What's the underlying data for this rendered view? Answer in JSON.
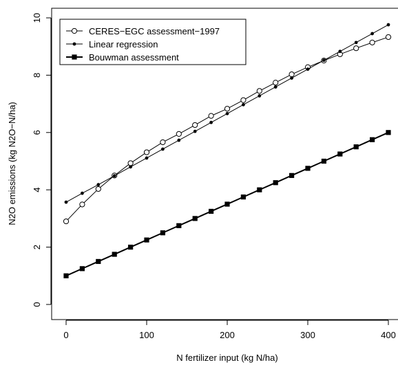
{
  "chart_data": {
    "type": "line",
    "xlabel": "N fertilizer input (kg N/ha)",
    "ylabel": "N2O emissions (kg N2O−N/ha)",
    "xlim": [
      0,
      400
    ],
    "ylim": [
      0,
      10
    ],
    "x_ticks": [
      0,
      100,
      200,
      300,
      400
    ],
    "y_ticks": [
      0,
      2,
      4,
      6,
      8,
      10
    ],
    "grid": false,
    "legend_position": "top-left",
    "x": [
      0,
      20,
      40,
      60,
      80,
      100,
      120,
      140,
      160,
      180,
      200,
      220,
      240,
      260,
      280,
      300,
      320,
      340,
      360,
      380,
      400
    ],
    "series": [
      {
        "name": "CERES−EGC assessment−1997",
        "marker": "open-circle",
        "values": [
          2.9,
          3.49,
          4.03,
          4.5,
          4.93,
          5.31,
          5.66,
          5.95,
          6.26,
          6.58,
          6.83,
          7.13,
          7.45,
          7.74,
          8.03,
          8.28,
          8.51,
          8.73,
          8.94,
          9.14,
          9.33
        ]
      },
      {
        "name": "Linear regression",
        "marker": "filled-dot",
        "values": [
          3.57,
          3.88,
          4.18,
          4.49,
          4.8,
          5.11,
          5.42,
          5.73,
          6.04,
          6.35,
          6.66,
          6.97,
          7.28,
          7.59,
          7.9,
          8.21,
          8.52,
          8.83,
          9.14,
          9.45,
          9.76
        ]
      },
      {
        "name": "Bouwman assessment",
        "marker": "filled-square",
        "values": [
          1.0,
          1.25,
          1.5,
          1.75,
          2.0,
          2.25,
          2.5,
          2.75,
          3.0,
          3.25,
          3.5,
          3.75,
          4.0,
          4.25,
          4.5,
          4.75,
          5.0,
          5.25,
          5.5,
          5.75,
          6.0
        ]
      }
    ]
  }
}
